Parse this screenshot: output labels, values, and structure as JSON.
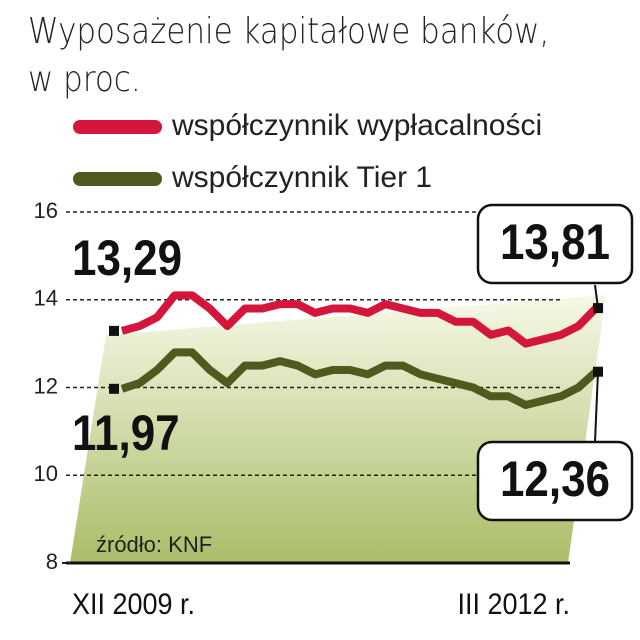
{
  "chart_data": {
    "type": "line",
    "title": "Wyposażenie kapitałowe banków, w proc.",
    "source": "źródło: KNF",
    "categories": [
      "XII 2009 r.",
      null,
      null,
      null,
      null,
      null,
      null,
      null,
      null,
      null,
      null,
      null,
      null,
      null,
      null,
      null,
      null,
      null,
      null,
      null,
      null,
      null,
      null,
      null,
      null,
      null,
      null,
      "III 2012 r."
    ],
    "series": [
      {
        "name": "współczynnik wypłacalności",
        "color": "#d4163c",
        "values": [
          13.29,
          13.4,
          13.6,
          14.1,
          14.1,
          13.8,
          13.4,
          13.8,
          13.8,
          13.9,
          13.9,
          13.7,
          13.8,
          13.8,
          13.7,
          13.9,
          13.8,
          13.7,
          13.7,
          13.5,
          13.5,
          13.2,
          13.3,
          13.0,
          13.1,
          13.2,
          13.4,
          13.81
        ],
        "value_labels": [
          "13,29",
          null,
          null,
          null,
          null,
          null,
          null,
          null,
          null,
          null,
          null,
          null,
          null,
          null,
          null,
          null,
          null,
          null,
          null,
          null,
          null,
          null,
          null,
          null,
          null,
          null,
          null,
          "13,81"
        ]
      },
      {
        "name": "współczynnik Tier 1",
        "color": "#4f5a1f",
        "values": [
          11.97,
          12.1,
          12.4,
          12.8,
          12.8,
          12.4,
          12.1,
          12.5,
          12.5,
          12.6,
          12.5,
          12.3,
          12.4,
          12.4,
          12.3,
          12.5,
          12.5,
          12.3,
          12.2,
          12.1,
          12.0,
          11.8,
          11.8,
          11.6,
          11.7,
          11.8,
          12.0,
          12.36
        ],
        "value_labels": [
          "11,97",
          null,
          null,
          null,
          null,
          null,
          null,
          null,
          null,
          null,
          null,
          null,
          null,
          null,
          null,
          null,
          null,
          null,
          null,
          null,
          null,
          null,
          null,
          null,
          null,
          null,
          null,
          "12,36"
        ]
      }
    ],
    "ylim": [
      8,
      16
    ],
    "yticks": [
      8,
      10,
      12,
      14,
      16
    ],
    "grid": true
  }
}
